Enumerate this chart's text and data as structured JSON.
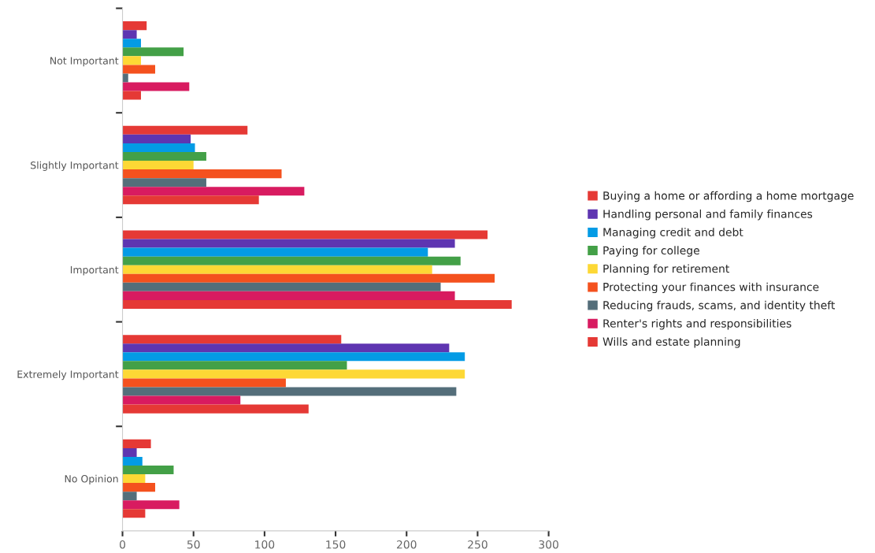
{
  "chart_data": {
    "type": "bar",
    "orientation": "horizontal",
    "categories": [
      "Not Important",
      "Slightly Important",
      "Important",
      "Extremely Important",
      "No Opinion"
    ],
    "series": [
      {
        "name": "Buying a home or affording a home mortgage",
        "color": "#e53935",
        "values": [
          17,
          88,
          257,
          154,
          20
        ]
      },
      {
        "name": "Handling personal and family finances",
        "color": "#5e35b1",
        "values": [
          10,
          48,
          234,
          230,
          10
        ]
      },
      {
        "name": "Managing credit and debt",
        "color": "#039be5",
        "values": [
          13,
          51,
          215,
          241,
          14
        ]
      },
      {
        "name": "Paying for college",
        "color": "#43a047",
        "values": [
          43,
          59,
          238,
          158,
          36
        ]
      },
      {
        "name": "Planning for retirement",
        "color": "#fdd835",
        "values": [
          13,
          50,
          218,
          241,
          16
        ]
      },
      {
        "name": "Protecting your finances with insurance",
        "color": "#f4511e",
        "values": [
          23,
          112,
          262,
          115,
          23
        ]
      },
      {
        "name": "Reducing frauds, scams, and identity theft",
        "color": "#546e7a",
        "values": [
          4,
          59,
          224,
          235,
          10
        ]
      },
      {
        "name": "Renter's rights and responsibilities",
        "color": "#d81b60",
        "values": [
          47,
          128,
          234,
          83,
          40
        ]
      },
      {
        "name": "Wills and estate planning",
        "color": "#e53935",
        "values": [
          13,
          96,
          274,
          131,
          16
        ]
      }
    ],
    "xlim": [
      0,
      300
    ],
    "xticks": [
      0,
      50,
      100,
      150,
      200,
      250,
      300
    ],
    "grid": false,
    "legend": "right"
  }
}
